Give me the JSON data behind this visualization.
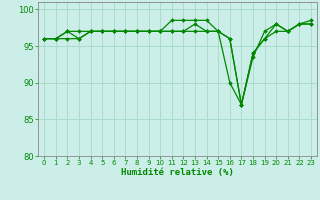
{
  "xlabel": "Humidité relative (%)",
  "background_color": "#cceee8",
  "grid_color": "#aaddcc",
  "line_color": "#008800",
  "marker_color": "#008800",
  "xlim": [
    -0.5,
    23.5
  ],
  "ylim": [
    80,
    101
  ],
  "yticks": [
    80,
    85,
    90,
    95,
    100
  ],
  "xticks": [
    0,
    1,
    2,
    3,
    4,
    5,
    6,
    7,
    8,
    9,
    10,
    11,
    12,
    13,
    14,
    15,
    16,
    17,
    18,
    19,
    20,
    21,
    22,
    23
  ],
  "series": [
    [
      96,
      96,
      97,
      96,
      97,
      97,
      97,
      97,
      97,
      97,
      97,
      98.5,
      98.5,
      98.5,
      98.5,
      97,
      90,
      87,
      94,
      96,
      98,
      97,
      98,
      98.5
    ],
    [
      96,
      96,
      97,
      97,
      97,
      97,
      97,
      97,
      97,
      97,
      97,
      97,
      97,
      98,
      97,
      97,
      96,
      87,
      93.5,
      97,
      98,
      97,
      98,
      98
    ],
    [
      96,
      96,
      96,
      96,
      97,
      97,
      97,
      97,
      97,
      97,
      97,
      97,
      97,
      97,
      97,
      97,
      96,
      87,
      94,
      96,
      97,
      97,
      98,
      98
    ]
  ]
}
